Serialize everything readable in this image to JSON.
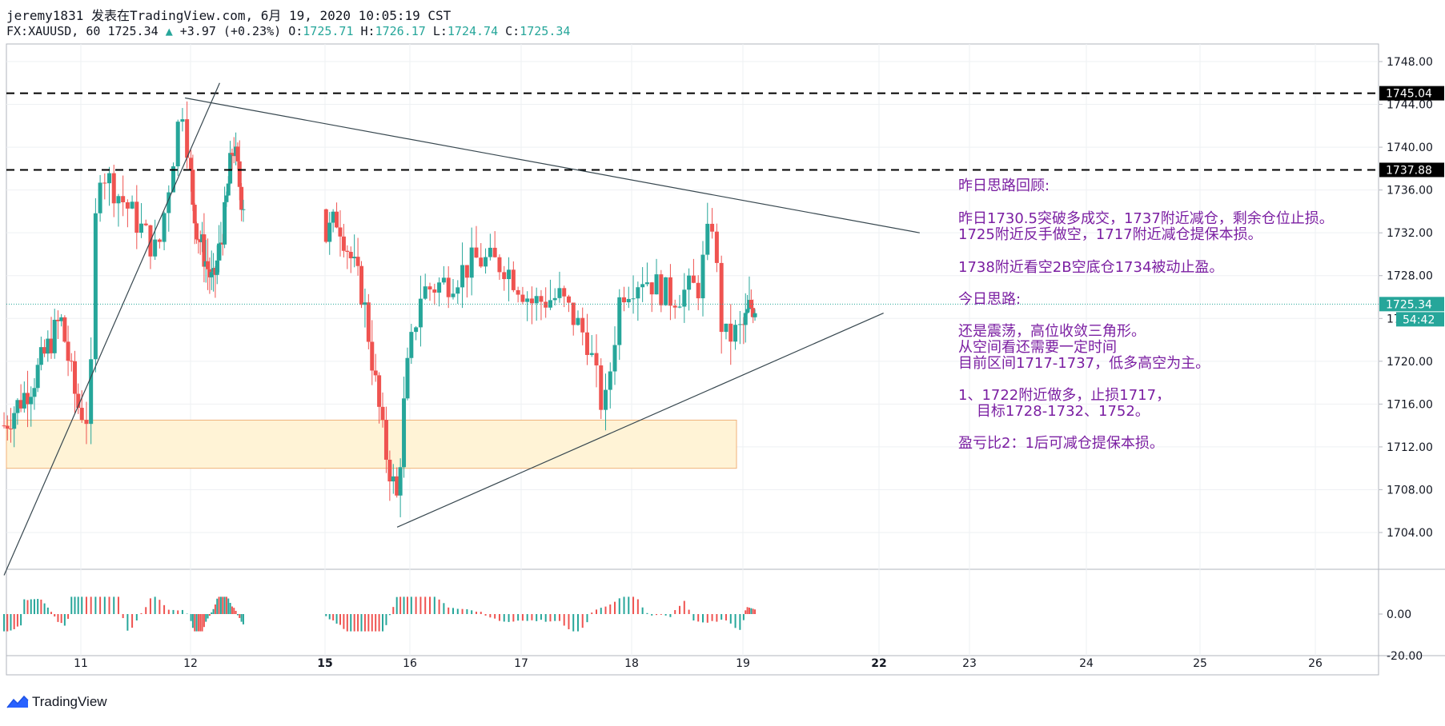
{
  "header": {
    "line1": "jeremy1831 发表在TradingView.com, 6月 19, 2020 10:05:19 CST",
    "symbol": "FX:XAUUSD, 60",
    "last": "1725.34",
    "change": "+3.97 (+0.23%)",
    "o_label": "O:",
    "o_value": "1725.71",
    "h_label": "H:",
    "h_value": "1726.17",
    "l_label": "L:",
    "l_value": "1724.74",
    "c_label": "C:",
    "c_value": "1725.34"
  },
  "colors": {
    "bull": "#26a69a",
    "bear": "#ef5350",
    "note": "#7b1fa2",
    "zone_fill": "#fff3d6",
    "zone_border": "#f0b27a",
    "price_tag": "#26a69a"
  },
  "annotations": {
    "line1": "昨日思路回顾:",
    "line2": "昨日1730.5突破多成交，1737附近减仓，剩余仓位止损。",
    "line3": "1725附近反手做空，1717附近减仓提保本损。",
    "line4": "1738附近看空2B空底仓1734被动止盈。",
    "line5": "今日思路:",
    "line6": "还是震荡，高位收敛三角形。",
    "line7": "从空间看还需要一定时间",
    "line8": "目前区间1717-1737，低多高空为主。",
    "line9": "1、1722附近做多，止损1717，",
    "line10": "    目标1728-1732、1752。",
    "line11": "盈亏比2：1后可减仓提保本损。"
  },
  "price_labels": {
    "level_high": "1745.04",
    "level_mid": "1737.88",
    "last_price": "1725.34",
    "countdown": "54:42"
  },
  "logo": {
    "text": "TradingView",
    "icon": "tradingview-logo-icon"
  },
  "chart_data": {
    "type": "candlestick",
    "symbol": "FX:XAUUSD",
    "timeframe": "60",
    "ylim": [
      1700,
      1750
    ],
    "y_ticks": [
      "1748.00",
      "1744.00",
      "1740.00",
      "1736.00",
      "1732.00",
      "1728.00",
      "1724.00",
      "1720.00",
      "1716.00",
      "1712.00",
      "1708.00",
      "1704.00"
    ],
    "x_ticks": [
      {
        "label": "11",
        "bold": false,
        "day": 11
      },
      {
        "label": "12",
        "bold": false,
        "day": 12
      },
      {
        "label": "15",
        "bold": true,
        "day": 15
      },
      {
        "label": "16",
        "bold": false,
        "day": 16
      },
      {
        "label": "17",
        "bold": false,
        "day": 17
      },
      {
        "label": "18",
        "bold": false,
        "day": 18
      },
      {
        "label": "19",
        "bold": false,
        "day": 19
      },
      {
        "label": "22",
        "bold": true,
        "day": 22
      },
      {
        "label": "23",
        "bold": false,
        "day": 23
      },
      {
        "label": "24",
        "bold": false,
        "day": 24
      },
      {
        "label": "25",
        "bold": false,
        "day": 25
      },
      {
        "label": "26",
        "bold": false,
        "day": 26
      }
    ],
    "horizontal_levels": [
      1745.04,
      1737.88
    ],
    "last_price": 1725.34,
    "support_zone": {
      "from": 1710.0,
      "to": 1714.5
    },
    "trendlines": [
      {
        "name": "rising-wedge-left",
        "from": {
          "day": 10.05,
          "price": 1700
        },
        "to": {
          "day": 12.65,
          "price": 1746
        }
      },
      {
        "name": "descending-resistance",
        "from": {
          "day": 11.95,
          "price": 1744.6
        },
        "to": {
          "day": 22.45,
          "price": 1732.0
        }
      },
      {
        "name": "ascending-support",
        "from": {
          "day": 15.85,
          "price": 1704.5
        },
        "to": {
          "day": 22.05,
          "price": 1724.5
        }
      }
    ],
    "candles_anchor": [
      {
        "day": 10.05,
        "price": 1714.0
      },
      {
        "day": 10.4,
        "price": 1718.0
      },
      {
        "day": 10.75,
        "price": 1724.0
      },
      {
        "day": 10.95,
        "price": 1716.0
      },
      {
        "day": 11.08,
        "price": 1714.5
      },
      {
        "day": 11.15,
        "price": 1738.5
      },
      {
        "day": 11.45,
        "price": 1734.0
      },
      {
        "day": 11.7,
        "price": 1730.0
      },
      {
        "day": 11.92,
        "price": 1744.3
      },
      {
        "day": 12.05,
        "price": 1734.0
      },
      {
        "day": 12.3,
        "price": 1730.0
      },
      {
        "day": 12.5,
        "price": 1727.0
      },
      {
        "day": 12.75,
        "price": 1733.0
      },
      {
        "day": 12.95,
        "price": 1740.5
      },
      {
        "day": 13.15,
        "price": 1735.0
      },
      {
        "day": 15.0,
        "price": 1731.5
      },
      {
        "day": 15.15,
        "price": 1733.5
      },
      {
        "day": 15.45,
        "price": 1726.0
      },
      {
        "day": 15.7,
        "price": 1712.0
      },
      {
        "day": 15.85,
        "price": 1707.0
      },
      {
        "day": 15.95,
        "price": 1718.0
      },
      {
        "day": 16.1,
        "price": 1726.5
      },
      {
        "day": 16.35,
        "price": 1727.5
      },
      {
        "day": 16.6,
        "price": 1729.5
      },
      {
        "day": 16.85,
        "price": 1729.0
      },
      {
        "day": 17.1,
        "price": 1725.5
      },
      {
        "day": 17.35,
        "price": 1726.0
      },
      {
        "day": 17.6,
        "price": 1722.0
      },
      {
        "day": 17.75,
        "price": 1715.0
      },
      {
        "day": 17.9,
        "price": 1726.5
      },
      {
        "day": 18.1,
        "price": 1728.0
      },
      {
        "day": 18.35,
        "price": 1726.0
      },
      {
        "day": 18.6,
        "price": 1727.0
      },
      {
        "day": 18.72,
        "price": 1733.5
      },
      {
        "day": 18.82,
        "price": 1722.0
      },
      {
        "day": 19.0,
        "price": 1723.0
      },
      {
        "day": 19.15,
        "price": 1725.0
      },
      {
        "day": 19.3,
        "price": 1725.34
      }
    ],
    "oscillator": {
      "zero_label": "0.00",
      "bottom_label": "-20.00",
      "ylim": [
        -20,
        20
      ]
    }
  }
}
